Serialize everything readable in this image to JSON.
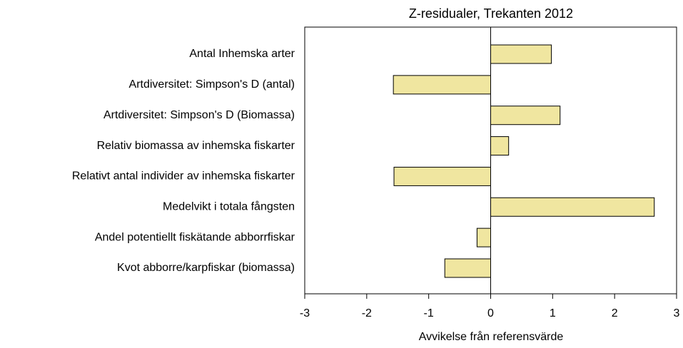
{
  "chart_data": {
    "type": "bar",
    "orientation": "horizontal",
    "title": "Z-residualer, Trekanten 2012",
    "x_label": "Avvikelse från referensvärde",
    "categories": [
      "Antal Inhemska arter",
      "Artdiversitet: Simpson's D (antal)",
      "Artdiversitet: Simpson's D (Biomassa)",
      "Relativ biomassa av inhemska fiskarter",
      "Relativt antal individer av inhemska fiskarter",
      "Medelvikt i totala fångsten",
      "Andel potentiellt fiskätande abborrfiskar",
      "Kvot abborre/karpfiskar (biomassa)"
    ],
    "values": [
      0.98,
      -1.57,
      1.12,
      0.29,
      -1.56,
      2.64,
      -0.22,
      -0.74
    ],
    "color": "#f0e6a0",
    "xlim": [
      -3,
      3
    ],
    "xticks": [
      -3,
      -2,
      -1,
      0,
      1,
      2,
      3
    ]
  }
}
